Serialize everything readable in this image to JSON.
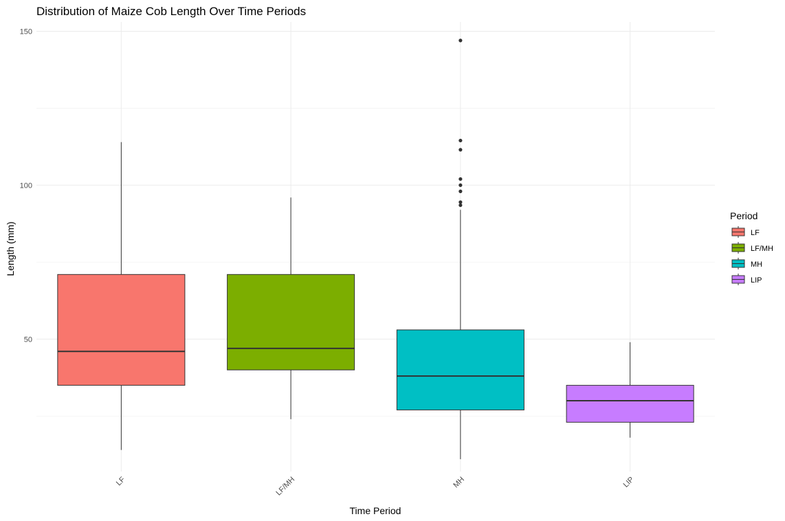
{
  "chart_data": {
    "type": "box",
    "title": "Distribution of Maize Cob Length Over Time Periods",
    "xlabel": "Time Period",
    "ylabel": "Length (mm)",
    "categories": [
      "LF",
      "LF/MH",
      "MH",
      "LIP"
    ],
    "ylim": [
      7,
      153
    ],
    "yticks": [
      50,
      100,
      150
    ],
    "grid": true,
    "legend": {
      "title": "Period",
      "position": "right"
    },
    "colors": [
      "#F8766D",
      "#7CAE00",
      "#00BFC4",
      "#C77CFF"
    ],
    "boxes": [
      {
        "category": "LF",
        "whisker_low": 14,
        "q1": 35,
        "median": 46,
        "q3": 71,
        "whisker_high": 114,
        "outliers": []
      },
      {
        "category": "LF/MH",
        "whisker_low": 24,
        "q1": 40,
        "median": 47,
        "q3": 71,
        "whisker_high": 96,
        "outliers": []
      },
      {
        "category": "MH",
        "whisker_low": 11,
        "q1": 27,
        "median": 38,
        "q3": 53,
        "whisker_high": 92,
        "outliers": [
          93.5,
          94.5,
          98,
          100,
          102,
          111.5,
          114.5,
          147
        ]
      },
      {
        "category": "LIP",
        "whisker_low": 18,
        "q1": 23,
        "median": 30,
        "q3": 35,
        "whisker_high": 49,
        "outliers": []
      }
    ]
  }
}
